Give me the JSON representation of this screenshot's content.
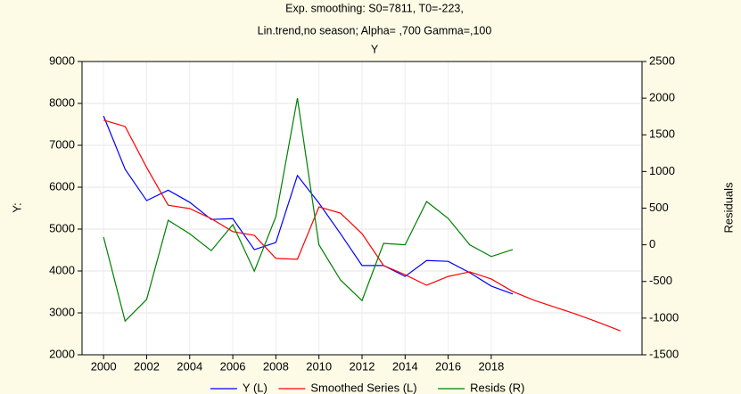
{
  "chart_data": {
    "type": "line",
    "title": "Exp. smoothing:  S0=7811, T0=-223,",
    "subtitle": "Lin.trend,no season; Alpha=  ,700 Gamma=,100",
    "plot_title": "Y",
    "y_label": "Y:",
    "y2_label": "Residuals",
    "x": [
      2000,
      2001,
      2002,
      2003,
      2004,
      2005,
      2006,
      2007,
      2008,
      2009,
      2010,
      2011,
      2012,
      2013,
      2014,
      2015,
      2016,
      2017,
      2018,
      2019,
      2020,
      2021,
      2022,
      2023,
      2024
    ],
    "series": [
      {
        "name": "Y (L)",
        "color": "#0000ff",
        "axis": "y",
        "values": [
          7700,
          6430,
          5680,
          5930,
          5640,
          5230,
          5250,
          4510,
          4680,
          6280,
          5620,
          4890,
          4130,
          4130,
          3870,
          4250,
          4230,
          3960,
          3640,
          3450,
          null,
          null,
          null,
          null,
          null
        ]
      },
      {
        "name": "Smoothed Series (L)",
        "color": "#ff0000",
        "axis": "y",
        "values": [
          7600,
          7450,
          6470,
          5570,
          5490,
          5250,
          4940,
          4850,
          4300,
          4280,
          5530,
          5380,
          4890,
          4130,
          3910,
          3660,
          3870,
          3980,
          3810,
          3510,
          3300,
          3130,
          2960,
          2770,
          2570
        ]
      },
      {
        "name": "Resids (R)",
        "color": "#008000",
        "axis": "y2",
        "values": [
          105,
          -1040,
          -745,
          335,
          150,
          -80,
          275,
          -360,
          385,
          2000,
          0,
          -480,
          -760,
          20,
          0,
          590,
          360,
          0,
          -160,
          -65,
          null,
          null,
          null,
          null,
          null
        ]
      }
    ],
    "xlim": [
      1999,
      2025
    ],
    "xticks": [
      2000,
      2002,
      2004,
      2006,
      2008,
      2010,
      2012,
      2014,
      2016,
      2018
    ],
    "ylim": [
      2000,
      9000
    ],
    "yticks": [
      2000,
      3000,
      4000,
      5000,
      6000,
      7000,
      8000,
      9000
    ],
    "y2lim": [
      -1500,
      2500
    ],
    "y2ticks": [
      -1500,
      -1000,
      -500,
      0,
      500,
      1000,
      1500,
      2000,
      2500
    ],
    "grid": true,
    "legend": "bottom"
  }
}
